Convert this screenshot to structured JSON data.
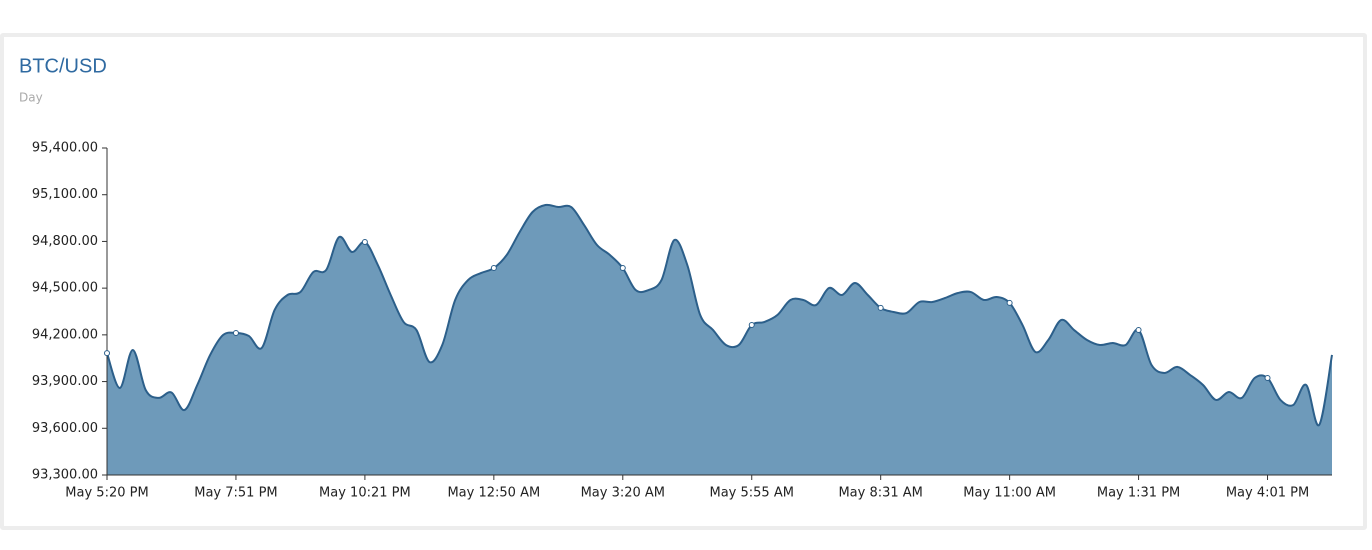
{
  "chart_data": {
    "type": "area",
    "title": "BTC/USD",
    "subtitle": "Day",
    "categories": [
      "May 5:20 PM",
      null,
      null,
      null,
      null,
      null,
      null,
      null,
      null,
      null,
      "May 7:51 PM",
      null,
      null,
      null,
      null,
      null,
      null,
      null,
      null,
      null,
      "May 10:21 PM",
      null,
      null,
      null,
      null,
      null,
      null,
      null,
      null,
      null,
      "May 12:50 AM",
      null,
      null,
      null,
      null,
      null,
      null,
      null,
      null,
      null,
      "May 3:20 AM",
      null,
      null,
      null,
      null,
      null,
      null,
      null,
      null,
      null,
      "May 5:55 AM",
      null,
      null,
      null,
      null,
      null,
      null,
      null,
      null,
      null,
      "May 8:31 AM",
      null,
      null,
      null,
      null,
      null,
      null,
      null,
      null,
      null,
      "May 11:00 AM",
      null,
      null,
      null,
      null,
      null,
      null,
      null,
      null,
      null,
      "May 1:31 PM",
      null,
      null,
      null,
      null,
      null,
      null,
      null,
      null,
      null,
      "May 4:01 PM",
      null,
      null,
      null,
      null,
      null
    ],
    "values": [
      94083,
      93859,
      94103,
      93846,
      93795,
      93830,
      93717,
      93878,
      94071,
      94199,
      94212,
      94193,
      94116,
      94360,
      94456,
      94475,
      94604,
      94617,
      94828,
      94732,
      94796,
      94649,
      94456,
      94283,
      94231,
      94026,
      94135,
      94424,
      94552,
      94597,
      94629,
      94713,
      94860,
      94989,
      95034,
      95021,
      95021,
      94905,
      94777,
      94713,
      94629,
      94488,
      94488,
      94552,
      94809,
      94649,
      94328,
      94231,
      94135,
      94135,
      94263,
      94283,
      94328,
      94424,
      94424,
      94392,
      94501,
      94456,
      94533,
      94456,
      94373,
      94347,
      94340,
      94411,
      94411,
      94437,
      94469,
      94475,
      94424,
      94443,
      94405,
      94263,
      94090,
      94167,
      94296,
      94231,
      94167,
      94135,
      94148,
      94135,
      94231,
      94007,
      93955,
      93994,
      93942,
      93878,
      93782,
      93833,
      93795,
      93923,
      93923,
      93782,
      93750,
      93878,
      93621,
      94071
    ],
    "color": "#6e9aba",
    "line_color": "#2c5f8a",
    "ylim": [
      93300,
      95400
    ],
    "yticks": [
      {
        "value": 93300,
        "label": "93,300.00"
      },
      {
        "value": 93600,
        "label": "93,600.00"
      },
      {
        "value": 93900,
        "label": "93,900.00"
      },
      {
        "value": 94200,
        "label": "94,200.00"
      },
      {
        "value": 94500,
        "label": "94,500.00"
      },
      {
        "value": 94800,
        "label": "94,800.00"
      },
      {
        "value": 95100,
        "label": "95,100.00"
      },
      {
        "value": 95400,
        "label": "95,400.00"
      }
    ]
  }
}
